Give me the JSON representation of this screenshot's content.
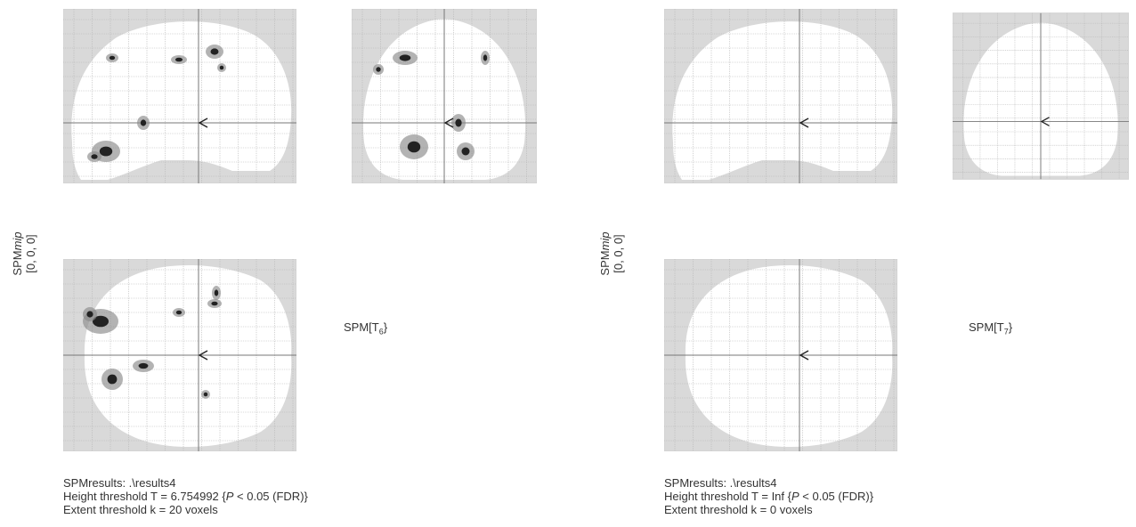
{
  "panels": [
    {
      "side_label_prefix": "SPM",
      "side_label_italic": "mip",
      "coords": "[0, 0, 0]",
      "stat_prefix": "SPM[T",
      "stat_sub": "6",
      "stat_suffix": "}",
      "results": {
        "line1": "SPMresults:  .\\results4",
        "line2_prefix": "Height threshold T = 6.754992 {",
        "line2_p": "P",
        "line2_suffix": " < 0.05 (FDR)}",
        "line3": "Extent threshold k = 20 voxels"
      },
      "has_activations": true
    },
    {
      "side_label_prefix": "SPM",
      "side_label_italic": "mip",
      "coords": "[0, 0, 0]",
      "stat_prefix": "SPM[T",
      "stat_sub": "7",
      "stat_suffix": "}",
      "results": {
        "line1": "SPMresults:  .\\results4",
        "line2_prefix": "Height threshold T = Inf {",
        "line2_p": "P",
        "line2_suffix": " < 0.05 (FDR)}",
        "line3": "Extent threshold k = 0 voxels"
      },
      "has_activations": false
    }
  ],
  "colors": {
    "background_grey": "#d9d9d9",
    "brain": "#ffffff",
    "grid": "#b5b5b5",
    "axis": "#777777"
  }
}
